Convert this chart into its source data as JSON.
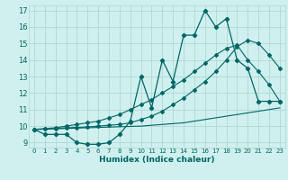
{
  "xlabel": "Humidex (Indice chaleur)",
  "bg_color": "#cff0ee",
  "grid_color": "#b0d8d4",
  "line_color": "#006666",
  "xlim": [
    -0.5,
    23.5
  ],
  "ylim": [
    8.7,
    17.3
  ],
  "xticks": [
    0,
    1,
    2,
    3,
    4,
    5,
    6,
    7,
    8,
    9,
    10,
    11,
    12,
    13,
    14,
    15,
    16,
    17,
    18,
    19,
    20,
    21,
    22,
    23
  ],
  "yticks": [
    9,
    10,
    11,
    12,
    13,
    14,
    15,
    16,
    17
  ],
  "humidex_curve_x": [
    0,
    1,
    2,
    3,
    4,
    5,
    6,
    7,
    8,
    9,
    10,
    11,
    12,
    13,
    14,
    15,
    16,
    17,
    18,
    19,
    20,
    21,
    22,
    23
  ],
  "humidex_curve_y": [
    9.8,
    9.5,
    9.5,
    9.5,
    9.0,
    8.9,
    8.9,
    9.0,
    9.5,
    10.3,
    13.0,
    11.1,
    14.0,
    12.7,
    15.5,
    15.5,
    17.0,
    16.0,
    16.5,
    14.0,
    13.5,
    11.5,
    11.5,
    11.5
  ],
  "line_steep_y": [
    9.8,
    9.85,
    9.9,
    10.0,
    10.1,
    10.2,
    10.3,
    10.5,
    10.7,
    11.0,
    11.3,
    11.6,
    12.0,
    12.4,
    12.8,
    13.3,
    13.8,
    14.3,
    14.7,
    14.9,
    14.0,
    13.3,
    12.5,
    11.5
  ],
  "line_mid_y": [
    9.8,
    9.82,
    9.85,
    9.9,
    9.92,
    9.95,
    10.0,
    10.05,
    10.1,
    10.2,
    10.4,
    10.6,
    10.9,
    11.3,
    11.7,
    12.2,
    12.7,
    13.3,
    14.0,
    14.8,
    15.2,
    15.0,
    14.3,
    13.5
  ],
  "line_flat_y": [
    9.8,
    9.82,
    9.84,
    9.86,
    9.88,
    9.9,
    9.92,
    9.94,
    9.96,
    9.98,
    10.0,
    10.05,
    10.1,
    10.15,
    10.2,
    10.3,
    10.4,
    10.5,
    10.6,
    10.7,
    10.8,
    10.9,
    11.0,
    11.1
  ]
}
